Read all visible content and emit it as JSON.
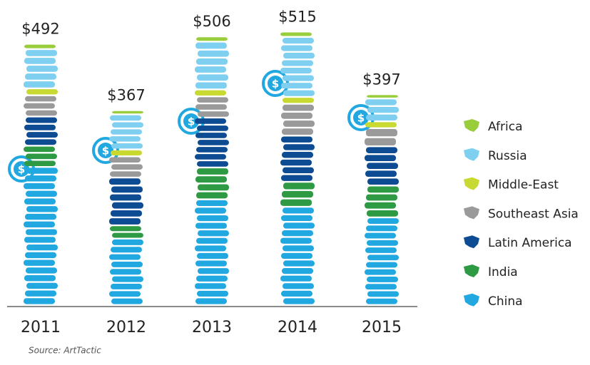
{
  "chart_data": {
    "type": "coin-stack",
    "categories": [
      "2011",
      "2012",
      "2013",
      "2014",
      "2015"
    ],
    "series": [
      {
        "name": "China",
        "color": "#22a8e0",
        "values": [
          260,
          125,
          199,
          185,
          165
        ]
      },
      {
        "name": "India",
        "color": "#2e9a43",
        "values": [
          40,
          25,
          60,
          47,
          60
        ]
      },
      {
        "name": "Latin America",
        "color": "#0d4c92",
        "values": [
          55,
          90,
          94,
          87,
          74
        ]
      },
      {
        "name": "Southeast Asia",
        "color": "#9a9a9a",
        "values": [
          40,
          40,
          40,
          60,
          34
        ]
      },
      {
        "name": "Middle-East",
        "color": "#c8d932",
        "values": [
          13,
          13,
          13,
          13,
          13
        ]
      },
      {
        "name": "Russia",
        "color": "#7fd0f0",
        "values": [
          74,
          66,
          90,
          113,
          43
        ]
      },
      {
        "name": "Africa",
        "color": "#9acd3c",
        "values": [
          10,
          8,
          10,
          10,
          8
        ]
      }
    ],
    "totals": [
      492,
      367,
      506,
      515,
      397
    ],
    "total_labels": [
      "$492",
      "$367",
      "$506",
      "$515",
      "$397"
    ],
    "ylim": [
      0,
      560
    ],
    "source": "Source: ArtTactic"
  }
}
